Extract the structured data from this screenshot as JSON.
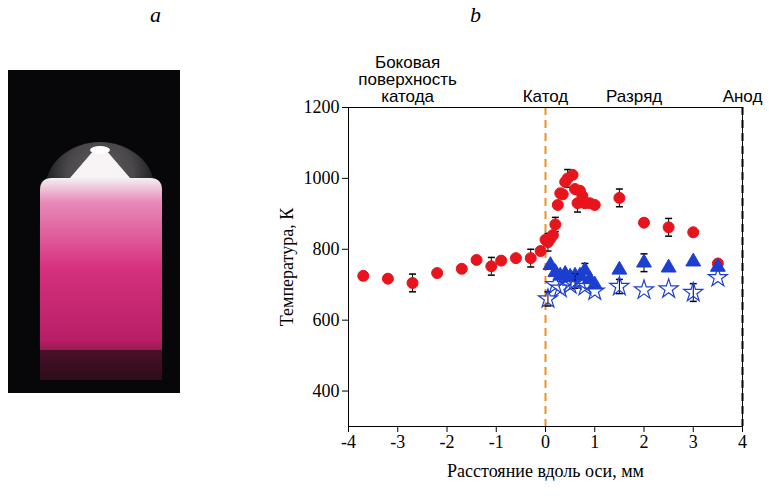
{
  "panel_labels": [
    "a",
    "b"
  ],
  "chart_data": {
    "type": "scatter",
    "x_label": "Расстояние вдоль оси, мм",
    "y_label": "Температура, К",
    "xlim": [
      -4,
      4
    ],
    "xticks": [
      -4,
      -3,
      -2,
      -1,
      0,
      1,
      2,
      3,
      4
    ],
    "ylim": [
      300,
      1200
    ],
    "yticks": [
      400,
      600,
      800,
      1000,
      1200
    ],
    "grid": false,
    "annotations": [
      {
        "text": "Боковая поверхность катода",
        "x": -2.8
      },
      {
        "text": "Катод",
        "x": 0
      },
      {
        "text": "Разряд",
        "x": 1.8
      },
      {
        "text": "Анод",
        "x": 4
      }
    ],
    "vlines": [
      {
        "x": 0,
        "color": "#f0901e",
        "line_style": "dashed"
      },
      {
        "x": 4,
        "color": "#000000",
        "line_style": "dashed"
      }
    ],
    "series": [
      {
        "color": "#e8141c",
        "marker": "circle",
        "x": [
          -3.7,
          -3.2,
          -2.7,
          -2.2,
          -1.7,
          -1.4,
          -1.1,
          -0.9,
          -0.6,
          -0.3,
          -0.1,
          0.0,
          0.05,
          0.1,
          0.15,
          0.2,
          0.25,
          0.3,
          0.35,
          0.4,
          0.45,
          0.55,
          0.6,
          0.65,
          0.7,
          0.75,
          0.8,
          0.9,
          1.0,
          1.5,
          2.0,
          2.5,
          3.0,
          3.5
        ],
        "values": [
          725,
          717,
          705,
          733,
          745,
          770,
          752,
          768,
          775,
          775,
          795,
          827,
          820,
          830,
          840,
          870,
          925,
          958,
          955,
          990,
          1000,
          1010,
          970,
          930,
          965,
          950,
          930,
          930,
          925,
          945,
          875,
          862,
          848,
          760
        ],
        "errors": [
          null,
          null,
          25,
          null,
          null,
          null,
          25,
          null,
          null,
          25,
          null,
          null,
          25,
          null,
          null,
          20,
          null,
          null,
          null,
          null,
          25,
          null,
          null,
          25,
          null,
          null,
          null,
          null,
          null,
          25,
          null,
          25,
          null,
          null
        ]
      },
      {
        "color": "#1c3fd0",
        "marker": "triangle",
        "x": [
          0.1,
          0.2,
          0.3,
          0.4,
          0.5,
          0.6,
          0.7,
          0.8,
          0.9,
          1.0,
          1.5,
          2.0,
          2.5,
          3.0,
          3.5
        ],
        "values": [
          755,
          735,
          725,
          730,
          722,
          725,
          725,
          740,
          715,
          700,
          742,
          762,
          748,
          765,
          750
        ],
        "errors": [
          null,
          null,
          null,
          null,
          null,
          null,
          null,
          20,
          null,
          null,
          null,
          25,
          null,
          null,
          null
        ]
      },
      {
        "color": "#1c3fd0",
        "marker": "star-open",
        "x": [
          0.05,
          0.2,
          0.3,
          0.4,
          0.5,
          0.6,
          0.7,
          0.8,
          1.0,
          1.5,
          2.0,
          2.5,
          3.0,
          3.5
        ],
        "values": [
          660,
          700,
          690,
          720,
          700,
          710,
          710,
          695,
          682,
          695,
          685,
          688,
          678,
          720
        ],
        "errors": [
          20,
          null,
          null,
          null,
          null,
          20,
          null,
          null,
          null,
          20,
          null,
          null,
          25,
          null
        ]
      }
    ]
  }
}
